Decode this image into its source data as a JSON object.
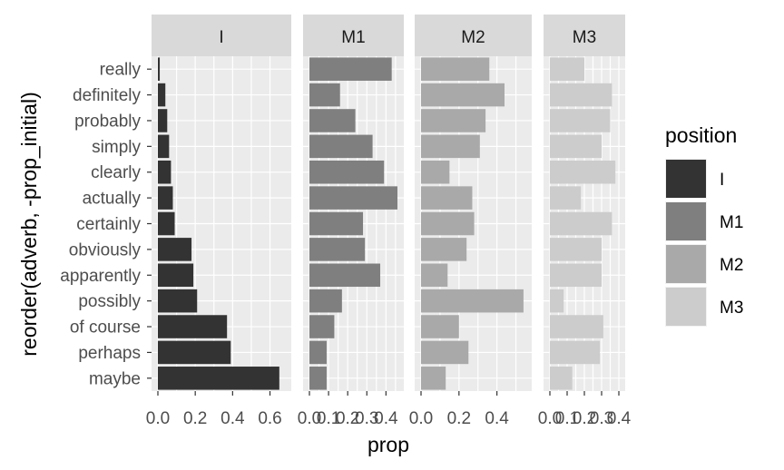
{
  "chart_data": {
    "type": "bar",
    "orientation": "horizontal",
    "facet_by": "position",
    "facet_scales": "free_x",
    "xlabel": "prop",
    "ylabel": "reorder(adverb, -prop_initial)",
    "categories": [
      "really",
      "definitely",
      "probably",
      "simply",
      "clearly",
      "actually",
      "certainly",
      "obviously",
      "apparently",
      "possibly",
      "of course",
      "perhaps",
      "maybe"
    ],
    "series": [
      {
        "name": "I",
        "color": "#333333",
        "xlim": [
          0,
          0.68
        ],
        "xticks": [
          "0.0",
          "0.2",
          "0.4",
          "0.6"
        ],
        "xtick_values": [
          0,
          0.2,
          0.4,
          0.6
        ],
        "values": [
          0.01,
          0.04,
          0.05,
          0.06,
          0.07,
          0.08,
          0.09,
          0.18,
          0.19,
          0.21,
          0.37,
          0.39,
          0.65
        ]
      },
      {
        "name": "M1",
        "color": "#7f7f7f",
        "xlim": [
          0,
          0.46
        ],
        "xticks": [
          "0.0",
          "0.1",
          "0.2",
          "0.3",
          "0.4"
        ],
        "xtick_values": [
          0,
          0.1,
          0.2,
          0.3,
          0.4
        ],
        "values": [
          0.43,
          0.16,
          0.24,
          0.33,
          0.39,
          0.46,
          0.28,
          0.29,
          0.37,
          0.17,
          0.13,
          0.09,
          0.09
        ]
      },
      {
        "name": "M2",
        "color": "#a9a9a9",
        "xlim": [
          0,
          0.55
        ],
        "xticks": [
          "0.0",
          "0.2",
          "0.4"
        ],
        "xtick_values": [
          0,
          0.2,
          0.4
        ],
        "values": [
          0.36,
          0.44,
          0.34,
          0.31,
          0.15,
          0.27,
          0.28,
          0.24,
          0.14,
          0.54,
          0.2,
          0.25,
          0.13
        ]
      },
      {
        "name": "M3",
        "color": "#cccccc",
        "xlim": [
          0,
          0.4
        ],
        "xticks": [
          "0.0",
          "0.1",
          "0.2",
          "0.3",
          "0.4"
        ],
        "xtick_values": [
          0,
          0.1,
          0.2,
          0.3,
          0.4
        ],
        "values": [
          0.2,
          0.36,
          0.35,
          0.3,
          0.38,
          0.18,
          0.36,
          0.3,
          0.3,
          0.08,
          0.31,
          0.29,
          0.13
        ]
      }
    ],
    "legend": {
      "title": "position",
      "position": "right",
      "entries": [
        "I",
        "M1",
        "M2",
        "M3"
      ]
    },
    "grid": true,
    "panel_background": "#ebebeb",
    "strip_background": "#d9d9d9"
  }
}
